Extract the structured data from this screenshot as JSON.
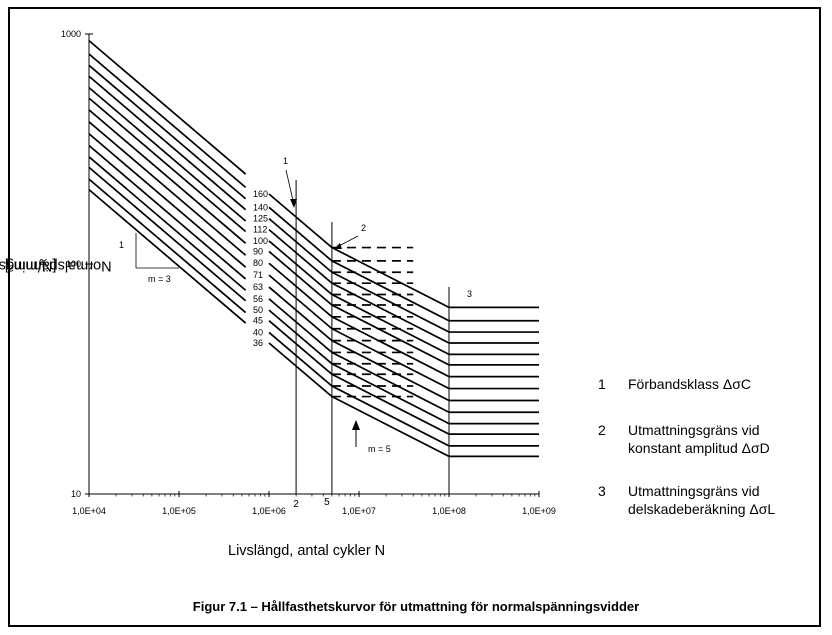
{
  "chart_data": {
    "type": "line",
    "title": "Figur 7.1 – Hållfasthetskurvor för utmattning för normalspänningsvidder",
    "xlabel": "Livslängd, antal cykler N",
    "ylabel": "Normalspänningsvidd Δσ",
    "ylabel_sub": "R",
    "ylabel_unit": " [N/mm²]",
    "x_scale": "log",
    "y_scale": "log",
    "xlim": [
      10000,
      1000000000
    ],
    "ylim": [
      10,
      1000
    ],
    "x_tick_values": [
      10000,
      100000,
      1000000,
      10000000,
      100000000,
      1000000000
    ],
    "x_ticks": [
      "1,0E+04",
      "1,0E+05",
      "1,0E+06",
      "1,0E+07",
      "1,0E+08",
      "1,0E+09"
    ],
    "y_tick_values": [
      10,
      100,
      1000
    ],
    "y_ticks": [
      "10",
      "100",
      "1000"
    ],
    "grid": false,
    "classes": [
      160,
      140,
      125,
      112,
      100,
      90,
      80,
      71,
      63,
      56,
      50,
      45,
      40,
      36
    ],
    "class_labels": [
      "160",
      "140",
      "125",
      "112",
      "100",
      "90",
      "80",
      "71",
      "63",
      "56",
      "50",
      "45",
      "40",
      "36"
    ],
    "reference_cycles": 2000000,
    "constant_amplitude_limit_cycles": 5000000,
    "cutoff_limit_cycles": 100000000,
    "slope_m1": 3,
    "slope_m2": 5,
    "curve_end_cycles": 1000000000,
    "upper_segment_end_cycles": 550000,
    "dashed_end_cycles": 40000000,
    "vertical_labels": [
      "2",
      "5"
    ],
    "annotations": {
      "slope1_marker": "1",
      "slope1_text": "m = 3",
      "slope2_text": "m = 5",
      "point1": "1",
      "point2": "2",
      "point3": "3"
    },
    "legend": [
      {
        "num": "1",
        "lines": [
          "Förbandsklass ΔσC"
        ]
      },
      {
        "num": "2",
        "lines": [
          "Utmattningsgräns vid",
          "konstant amplitud ΔσD"
        ]
      },
      {
        "num": "3",
        "lines": [
          "Utmattningsgräns vid",
          "delskadeberäkning ΔσL"
        ]
      }
    ]
  }
}
